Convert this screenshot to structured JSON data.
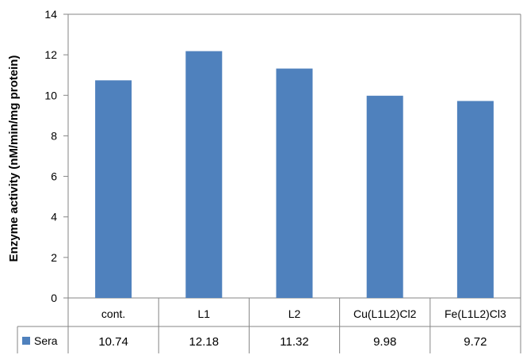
{
  "chart_data": {
    "type": "bar",
    "categories": [
      "cont.",
      "L1",
      "L2",
      "Cu(L1L2)Cl2",
      "Fe(L1L2)Cl3"
    ],
    "series": [
      {
        "name": "Sera",
        "values": [
          10.74,
          12.18,
          11.32,
          9.98,
          9.72
        ]
      }
    ],
    "data_table": [
      [
        "10.74",
        "12.18",
        "11.32",
        "9.98",
        "9.72"
      ]
    ],
    "ylabel": "Enzyme activity (nM/min/mg protein)",
    "xlabel": "",
    "ylim": [
      0,
      14
    ],
    "yticks": [
      0,
      2,
      4,
      6,
      8,
      10,
      12,
      14
    ],
    "yticklabels": [
      "0",
      "2",
      "4",
      "6",
      "8",
      "10",
      "12",
      "14"
    ],
    "grid": false,
    "legend": "data-table",
    "colors": {
      "bar": "#4f81bd",
      "axis": "#868686"
    }
  }
}
